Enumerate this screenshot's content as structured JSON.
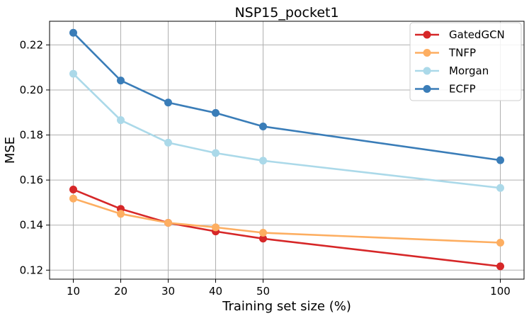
{
  "chart_data": {
    "type": "line",
    "title": "NSP15_pocket1",
    "xlabel": "Training set size (%)",
    "ylabel": "MSE",
    "x": [
      10,
      20,
      30,
      40,
      50,
      100
    ],
    "xticks": [
      "10",
      "20",
      "30",
      "40",
      "50",
      "100"
    ],
    "yticks": [
      "0.12",
      "0.14",
      "0.16",
      "0.18",
      "0.20",
      "0.22"
    ],
    "ytick_values": [
      0.12,
      0.14,
      0.16,
      0.18,
      0.2,
      0.22
    ],
    "xlim": [
      5,
      105
    ],
    "ylim": [
      0.116,
      0.2305
    ],
    "grid": true,
    "legend_position": "top-right",
    "series": [
      {
        "name": "GatedGCN",
        "color": "#d62728",
        "values": [
          0.1558,
          0.1472,
          0.141,
          0.1372,
          0.134,
          0.1217
        ]
      },
      {
        "name": "TNFP",
        "color": "#fdae61",
        "values": [
          0.1518,
          0.145,
          0.141,
          0.139,
          0.1366,
          0.1322
        ]
      },
      {
        "name": "Morgan",
        "color": "#abd9e9",
        "values": [
          0.2072,
          0.1866,
          0.1766,
          0.172,
          0.1686,
          0.1565
        ]
      },
      {
        "name": "ECFP",
        "color": "#3a7db8",
        "values": [
          0.2254,
          0.2042,
          0.1944,
          0.1898,
          0.1838,
          0.1688
        ]
      }
    ]
  }
}
